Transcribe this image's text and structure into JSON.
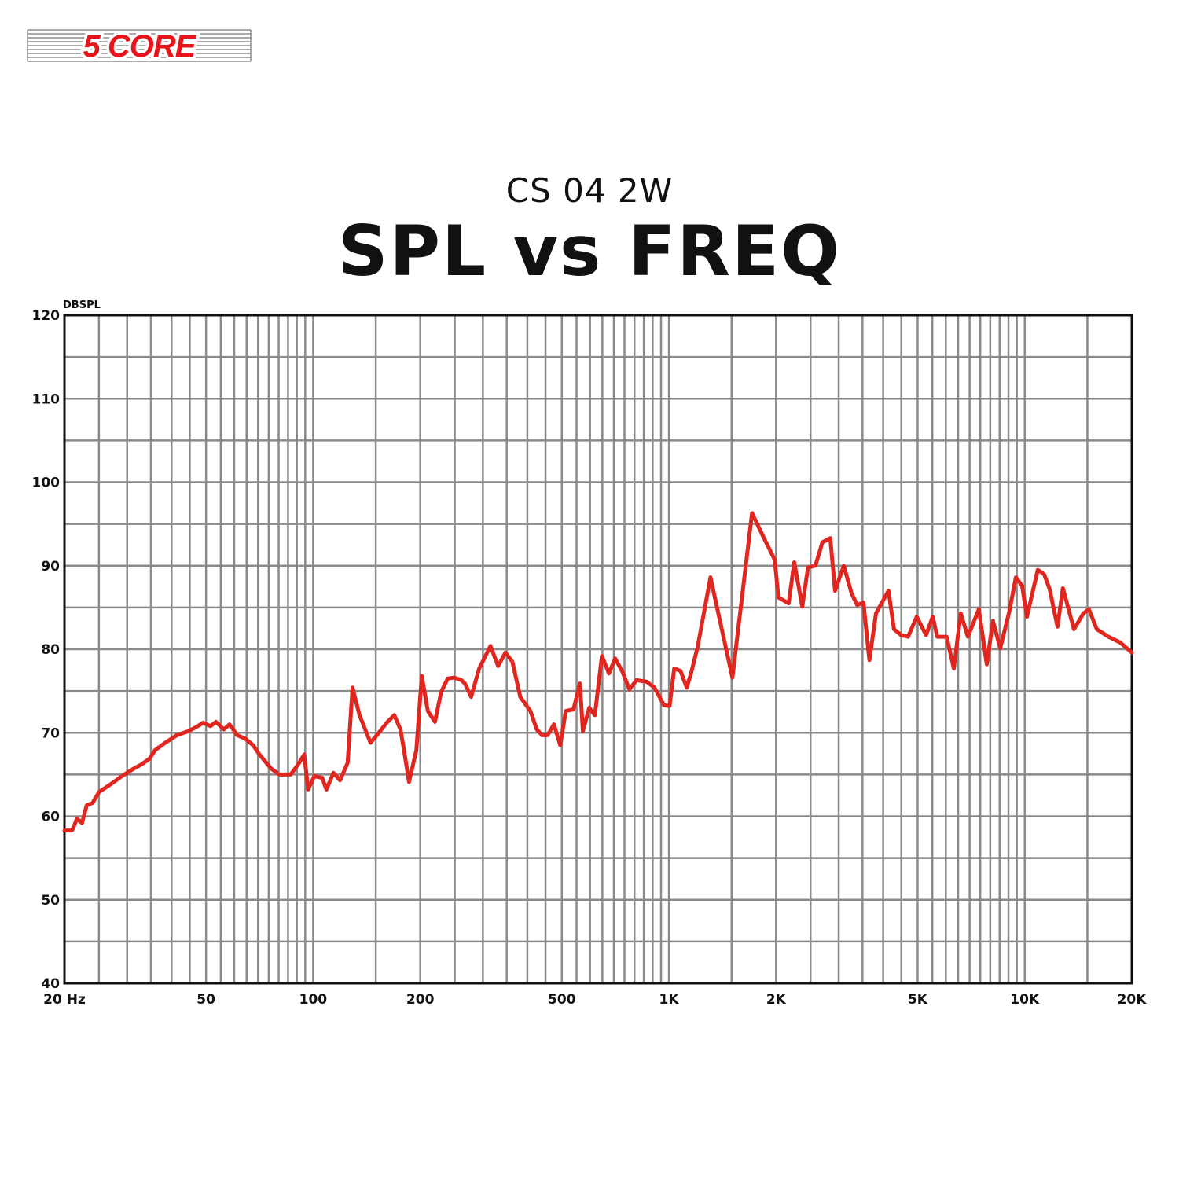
{
  "brand": {
    "logo_text": "5 CORE",
    "logo_color": "#e8141b"
  },
  "subtitle": "CS 04 2W",
  "title": "SPL vs FREQ",
  "chart_data": {
    "type": "line",
    "ylabel": "DBSPL",
    "xlabel": "",
    "x_scale": "log",
    "xlim": [
      20,
      20000
    ],
    "ylim": [
      40,
      120
    ],
    "grid": true,
    "line_color": "#e0261f",
    "x_ticks": [
      {
        "value": 20,
        "label": "20 Hz"
      },
      {
        "value": 50,
        "label": "50"
      },
      {
        "value": 100,
        "label": "100"
      },
      {
        "value": 200,
        "label": "200"
      },
      {
        "value": 500,
        "label": "500"
      },
      {
        "value": 1000,
        "label": "1K"
      },
      {
        "value": 2000,
        "label": "2K"
      },
      {
        "value": 5000,
        "label": "5K"
      },
      {
        "value": 10000,
        "label": "10K"
      },
      {
        "value": 20000,
        "label": "20K"
      }
    ],
    "y_ticks": [
      {
        "value": 120,
        "label": "120"
      },
      {
        "value": 110,
        "label": "110"
      },
      {
        "value": 100,
        "label": "100"
      },
      {
        "value": 90,
        "label": "90"
      },
      {
        "value": 80,
        "label": "80"
      },
      {
        "value": 70,
        "label": "70"
      },
      {
        "value": 60,
        "label": "60"
      },
      {
        "value": 50,
        "label": "50"
      },
      {
        "value": 40,
        "label": "40"
      }
    ],
    "x": [
      20,
      21,
      21.7,
      22.4,
      23.1,
      24,
      25,
      26.9,
      29,
      31.3,
      32.9,
      34.7,
      35.9,
      38.4,
      41.4,
      44.7,
      47,
      49,
      51.5,
      53.3,
      56.1,
      58.2,
      61.2,
      64.4,
      67.8,
      70.6,
      76.2,
      80.2,
      86.5,
      91,
      94.4,
      96.8,
      100.7,
      106,
      109,
      114,
      119,
      125,
      129,
      135,
      145,
      151,
      161,
      169,
      176,
      180,
      186,
      195,
      202,
      210,
      220,
      229,
      239,
      249,
      261,
      267,
      278,
      293,
      315,
      331,
      347,
      363,
      382,
      408,
      425,
      440,
      456,
      475,
      495,
      513,
      539,
      562,
      573,
      597,
      619,
      648,
      678,
      706,
      740,
      774,
      811,
      866,
      911,
      968,
      1004,
      1035,
      1078,
      1122,
      1157,
      1204,
      1308,
      1508,
      1712,
      1830,
      1983,
      2030,
      2170,
      2250,
      2370,
      2460,
      2580,
      2700,
      2840,
      2930,
      3100,
      3260,
      3380,
      3520,
      3660,
      3820,
      4140,
      4290,
      4490,
      4700,
      4970,
      5280,
      5510,
      5680,
      6030,
      6320,
      6610,
      6920,
      7430,
      7820,
      8140,
      8530,
      9060,
      9440,
      9830,
      10140,
      10880,
      11330,
      11750,
      12360,
      12800,
      13750,
      14620,
      15140,
      15940,
      17200,
      18560,
      20000
    ],
    "y": [
      58.3,
      58.3,
      59.7,
      59.2,
      61.3,
      61.6,
      62.9,
      63.8,
      64.8,
      65.7,
      66.2,
      66.9,
      67.9,
      68.8,
      69.7,
      70.2,
      70.7,
      71.2,
      70.8,
      71.3,
      70.4,
      71.0,
      69.7,
      69.3,
      68.5,
      67.4,
      65.7,
      65.0,
      65.0,
      66.3,
      67.4,
      63.2,
      64.8,
      64.6,
      63.2,
      65.2,
      64.3,
      66.4,
      75.4,
      72.1,
      68.8,
      69.7,
      71.2,
      72.1,
      70.4,
      67.9,
      64.1,
      67.9,
      76.8,
      72.6,
      71.3,
      74.9,
      76.5,
      76.6,
      76.3,
      75.9,
      74.3,
      77.7,
      80.4,
      78.0,
      79.6,
      78.5,
      74.3,
      72.6,
      70.4,
      69.7,
      69.7,
      71.0,
      68.5,
      72.6,
      72.8,
      75.9,
      70.2,
      73.0,
      72.1,
      79.2,
      77.1,
      78.9,
      77.3,
      75.2,
      76.3,
      76.1,
      75.4,
      73.3,
      73.2,
      77.7,
      77.4,
      75.4,
      77.3,
      80.3,
      88.6,
      76.6,
      96.3,
      93.7,
      90.7,
      86.2,
      85.5,
      90.4,
      85.1,
      89.8,
      90.0,
      92.8,
      93.3,
      87.0,
      90.0,
      86.7,
      85.3,
      85.6,
      78.7,
      84.3,
      87.0,
      82.4,
      81.7,
      81.5,
      83.9,
      81.7,
      83.9,
      81.5,
      81.5,
      77.7,
      84.3,
      81.5,
      84.8,
      78.2,
      83.4,
      80.1,
      84.6,
      88.6,
      87.6,
      83.9,
      89.5,
      89.0,
      87.2,
      82.7,
      87.3,
      82.4,
      84.3,
      84.8,
      82.4,
      81.5,
      80.8,
      79.6
    ]
  }
}
